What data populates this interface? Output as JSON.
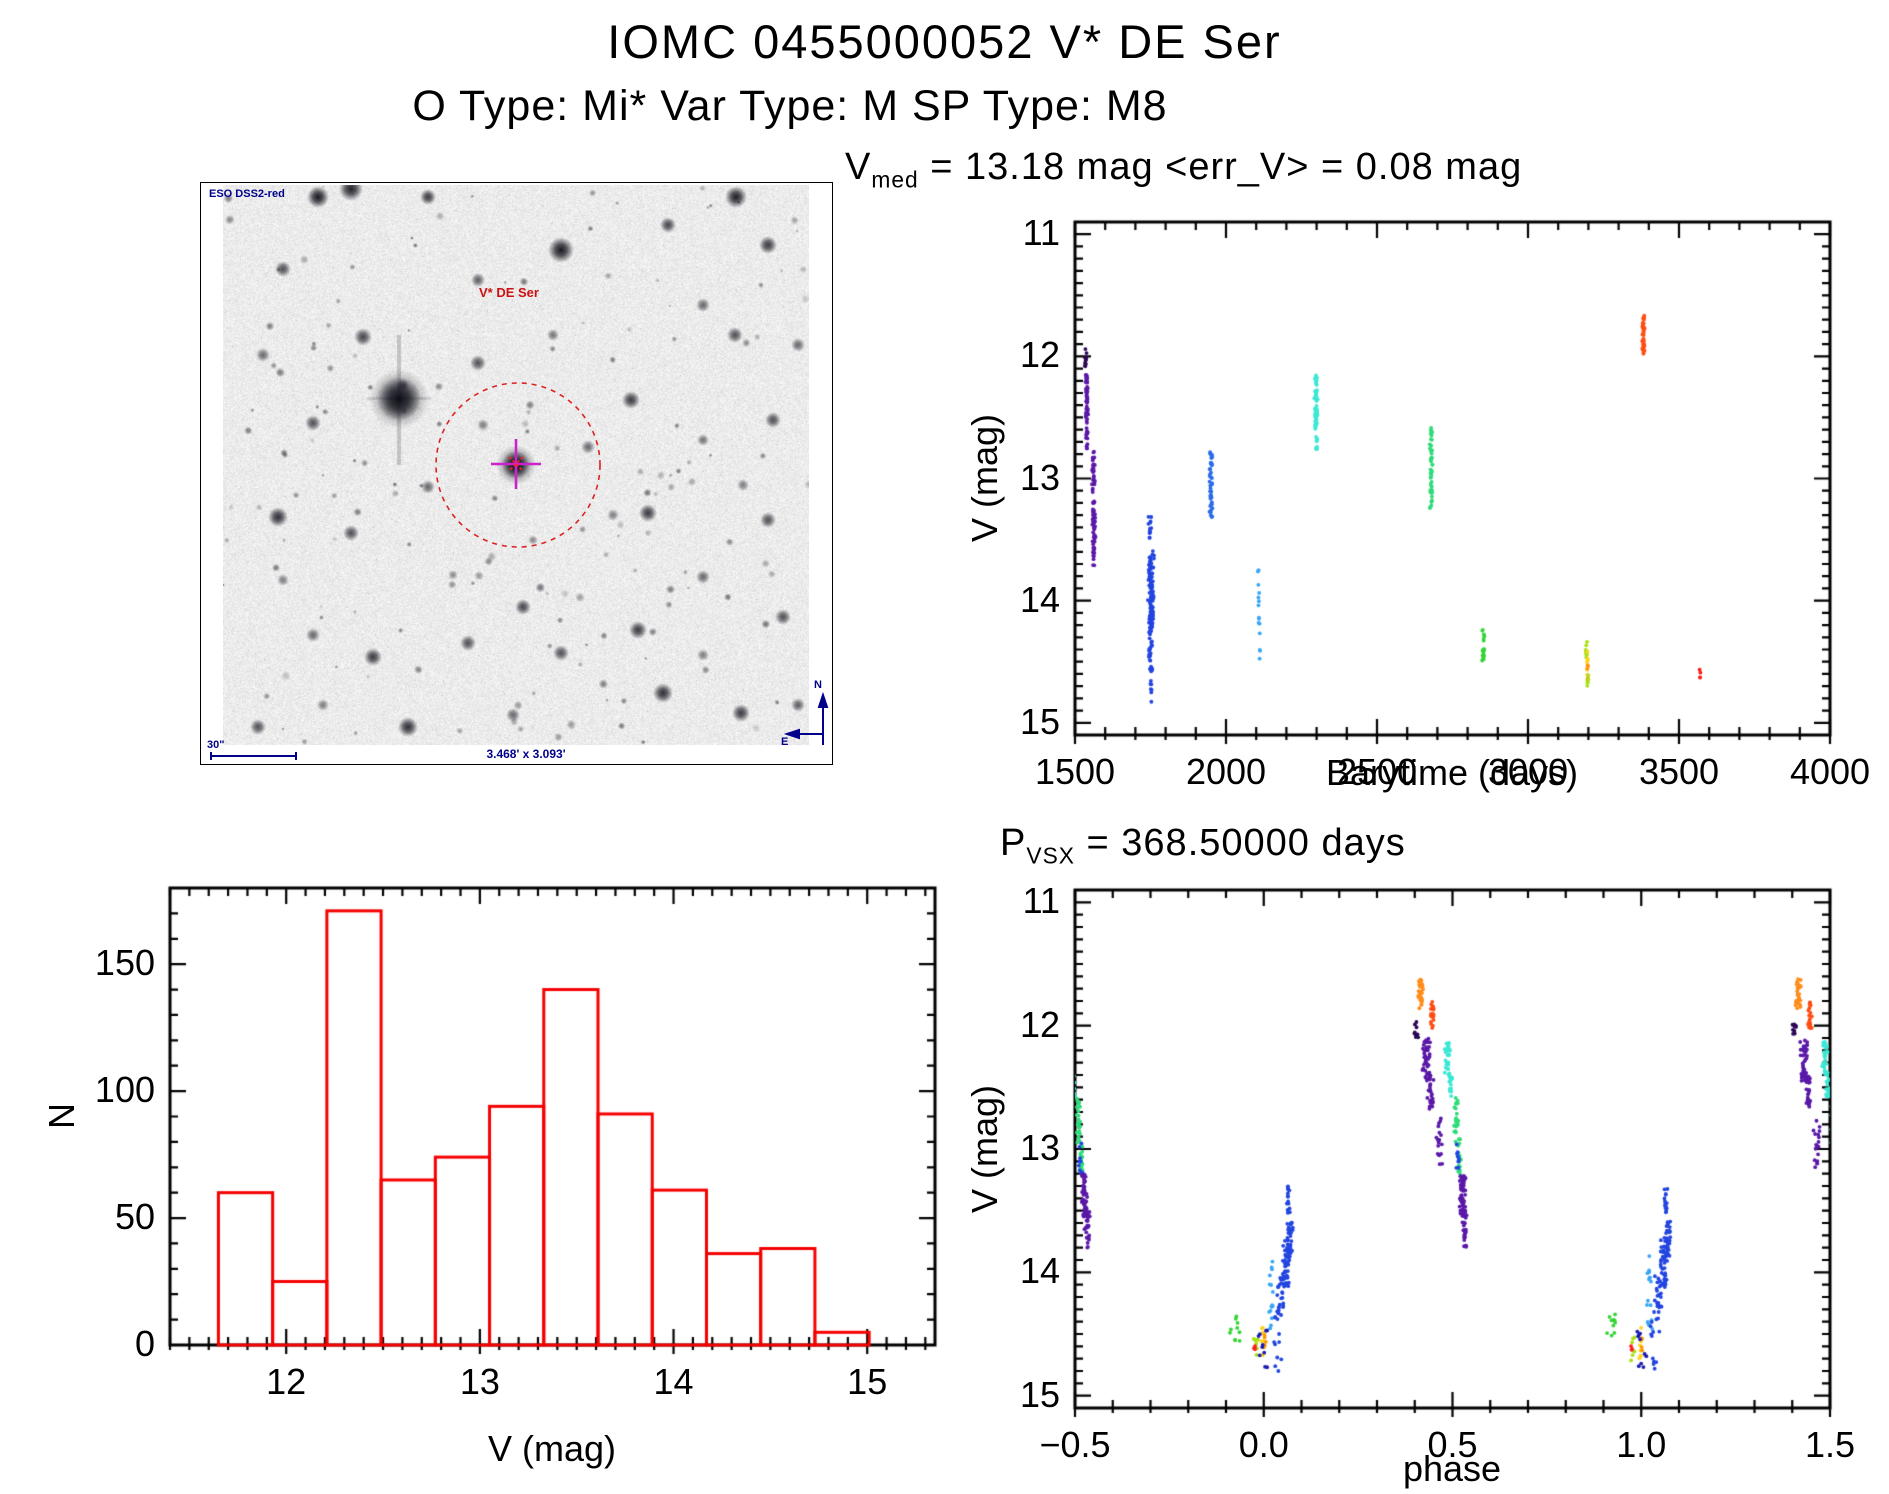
{
  "page": {
    "title": "IOMC 0455000052    V* DE Ser",
    "subtitle": "O Type: Mi*   Var Type: M   SP Type: M8"
  },
  "sky": {
    "survey_label": "ESO DSS2-red",
    "target_label": "V* DE Ser",
    "scale_bar_label": "30\"",
    "fov_label": "3.468' x 3.093'",
    "compass_north": "N",
    "compass_east": "E",
    "annotation_color": "#00008b",
    "target_label_color": "#cc1111",
    "circle_color": "#dd2222",
    "cross_color": "#cc22cc"
  },
  "palette": {
    "dkv": "#2b0656",
    "vio": "#5a18a8",
    "blu": "#2244e0",
    "bl2": "#2a6ce8",
    "lbl": "#38a6f5",
    "cyn": "#3ce8d5",
    "grn": "#2edc7a",
    "gr2": "#35d435",
    "ylg": "#a8e015",
    "yel": "#ffd21e",
    "or3": "#ff9500",
    "or1": "#ff8c1a",
    "or2": "#ff4d12",
    "red": "#ff1a1a",
    "nvy": "#1a1ab0"
  },
  "chart_data": [
    {
      "id": "barytime_lightcurve",
      "type": "scatter",
      "title": {
        "main": "V",
        "sub": "med",
        "rest": " = 13.18 mag <err_V> = 0.08 mag"
      },
      "xlabel": "Barytime (days)",
      "ylabel": "V (mag)",
      "xlim": [
        1500,
        4000
      ],
      "ylim_mag_top": 10.9,
      "ylim_mag_bottom": 15.1,
      "y_axis_inverted": true,
      "grid": false,
      "x_tick_values": [
        1500,
        2000,
        2500,
        3000,
        3500,
        4000
      ],
      "x_tick_labels": [
        "1500",
        "2000",
        "2500",
        "3000",
        "3500",
        "4000"
      ],
      "y_tick_values": [
        11,
        12,
        13,
        14,
        15
      ],
      "y_tick_labels": [
        "11",
        "12",
        "13",
        "14",
        "15"
      ],
      "x_minor_step": 100,
      "y_minor_step": 0.1,
      "clusters": [
        {
          "c": "dkv",
          "t": 1536,
          "dt": 4,
          "m0": 11.93,
          "m1": 12.12,
          "n": 10
        },
        {
          "c": "vio",
          "t": 1539,
          "dt": 5,
          "m0": 12.13,
          "m1": 12.68,
          "n": 60
        },
        {
          "c": "vio",
          "t": 1540,
          "dt": 3,
          "m0": 12.7,
          "m1": 12.8,
          "n": 4
        },
        {
          "c": "vio",
          "t": 1561,
          "dt": 6,
          "m0": 12.78,
          "m1": 13.12,
          "n": 30
        },
        {
          "c": "vio",
          "t": 1563,
          "dt": 6,
          "m0": 13.18,
          "m1": 13.72,
          "n": 55
        },
        {
          "c": "blu",
          "t": 1748,
          "dt": 7,
          "m0": 13.3,
          "m1": 13.52,
          "n": 12
        },
        {
          "c": "blu",
          "t": 1752,
          "dt": 11,
          "m0": 13.58,
          "m1": 14.28,
          "n": 105
        },
        {
          "c": "blu",
          "t": 1750,
          "dt": 8,
          "m0": 14.3,
          "m1": 14.62,
          "n": 22
        },
        {
          "c": "blu",
          "t": 1753,
          "dt": 5,
          "m0": 14.65,
          "m1": 14.85,
          "n": 7
        },
        {
          "c": "bl2",
          "t": 1950,
          "dt": 6,
          "m0": 12.78,
          "m1": 13.32,
          "n": 48
        },
        {
          "c": "lbl",
          "t": 2108,
          "dt": 4,
          "m0": 13.72,
          "m1": 14.06,
          "n": 8
        },
        {
          "c": "lbl",
          "t": 2110,
          "dt": 4,
          "m0": 14.1,
          "m1": 14.3,
          "n": 5
        },
        {
          "c": "lbl",
          "t": 2112,
          "dt": 3,
          "m0": 14.4,
          "m1": 14.52,
          "n": 3
        },
        {
          "c": "cyn",
          "t": 2298,
          "dt": 6,
          "m0": 12.15,
          "m1": 12.6,
          "n": 58
        },
        {
          "c": "cyn",
          "t": 2300,
          "dt": 4,
          "m0": 12.62,
          "m1": 12.82,
          "n": 9
        },
        {
          "c": "grn",
          "t": 2680,
          "dt": 6,
          "m0": 12.58,
          "m1": 13.26,
          "n": 52
        },
        {
          "c": "gr2",
          "t": 2852,
          "dt": 5,
          "m0": 14.18,
          "m1": 14.52,
          "n": 18
        },
        {
          "c": "ylg",
          "t": 3193,
          "dt": 3,
          "m0": 14.32,
          "m1": 14.52,
          "n": 8
        },
        {
          "c": "yel",
          "t": 3196,
          "dt": 3,
          "m0": 14.4,
          "m1": 14.62,
          "n": 7
        },
        {
          "c": "or3",
          "t": 3197,
          "dt": 3,
          "m0": 14.5,
          "m1": 14.7,
          "n": 6
        },
        {
          "c": "ylg",
          "t": 3198,
          "dt": 3,
          "m0": 14.6,
          "m1": 14.74,
          "n": 5
        },
        {
          "c": "or2",
          "t": 3382,
          "dt": 5,
          "m0": 11.66,
          "m1": 11.98,
          "n": 38
        },
        {
          "c": "red",
          "t": 3570,
          "dt": 3,
          "m0": 14.56,
          "m1": 14.64,
          "n": 4
        }
      ]
    },
    {
      "id": "magnitude_histogram",
      "type": "bar",
      "title": "",
      "xlabel": "V (mag)",
      "ylabel": "N",
      "xlim": [
        11.4,
        15.35
      ],
      "ylim": [
        0,
        180
      ],
      "grid": false,
      "x_tick_values": [
        12,
        13,
        14,
        15
      ],
      "x_tick_labels": [
        "12",
        "13",
        "14",
        "15"
      ],
      "y_tick_values": [
        0,
        50,
        100,
        150
      ],
      "y_tick_labels": [
        "0",
        "50",
        "100",
        "150"
      ],
      "x_minor_step": 0.1,
      "y_minor_step": 10,
      "bin_start": 11.65,
      "bin_width": 0.28,
      "counts": [
        60,
        25,
        171,
        65,
        74,
        94,
        140,
        91,
        61,
        36,
        38,
        5
      ],
      "bar_color": "#f50000"
    },
    {
      "id": "phase_folded_lightcurve",
      "type": "scatter",
      "title": {
        "main": "P",
        "sub": "VSX",
        "rest": " = 368.50000 days"
      },
      "xlabel": "phase",
      "ylabel": "V (mag)",
      "xlim": [
        -0.5,
        1.5
      ],
      "ylim_mag_top": 10.9,
      "ylim_mag_bottom": 15.1,
      "y_axis_inverted": true,
      "grid": false,
      "period_days": 368.5,
      "x_tick_values": [
        -0.5,
        0.0,
        0.5,
        1.0,
        1.5
      ],
      "x_tick_labels": [
        "−0.5",
        "0.0",
        "0.5",
        "1.0",
        "1.5"
      ],
      "y_tick_values": [
        11,
        12,
        13,
        14,
        15
      ],
      "y_tick_labels": [
        "11",
        "12",
        "13",
        "14",
        "15"
      ],
      "x_minor_step": 0.1,
      "y_minor_step": 0.1,
      "cluster_phase_copies": [
        -1,
        0,
        1
      ],
      "clusters": [
        {
          "c": "or1",
          "p": 0.415,
          "dp": 0.008,
          "m0": 11.62,
          "m1": 11.86,
          "n": 30
        },
        {
          "c": "or2",
          "p": 0.447,
          "dp": 0.006,
          "m0": 11.8,
          "m1": 12.02,
          "n": 20
        },
        {
          "c": "dkv",
          "p": 0.405,
          "dp": 0.007,
          "m0": 11.95,
          "m1": 12.1,
          "n": 10
        },
        {
          "c": "vio",
          "p": 0.432,
          "dp": 0.012,
          "m0": 12.1,
          "m1": 12.45,
          "n": 45
        },
        {
          "c": "vio",
          "p": 0.442,
          "dp": 0.01,
          "m0": 12.4,
          "m1": 12.68,
          "n": 30
        },
        {
          "c": "vio",
          "p": 0.465,
          "dp": 0.01,
          "m0": 12.75,
          "m1": 13.15,
          "n": 18
        },
        {
          "c": "cyn",
          "p": 0.487,
          "dp": 0.008,
          "m0": 12.13,
          "m1": 12.4,
          "n": 28
        },
        {
          "c": "cyn",
          "p": 0.495,
          "dp": 0.007,
          "m0": 12.38,
          "m1": 12.58,
          "n": 18
        },
        {
          "c": "grn",
          "p": 0.51,
          "dp": 0.008,
          "m0": 12.58,
          "m1": 12.95,
          "n": 26
        },
        {
          "c": "grn",
          "p": 0.518,
          "dp": 0.007,
          "m0": 12.92,
          "m1": 13.22,
          "n": 20
        },
        {
          "c": "blu",
          "p": 0.515,
          "dp": 0.008,
          "m0": 12.95,
          "m1": 13.25,
          "n": 10
        },
        {
          "c": "vio",
          "p": 0.525,
          "dp": 0.01,
          "m0": 13.2,
          "m1": 13.55,
          "n": 50
        },
        {
          "c": "vio",
          "p": 0.532,
          "dp": 0.008,
          "m0": 13.5,
          "m1": 13.72,
          "n": 25
        },
        {
          "c": "vio",
          "p": 0.535,
          "dp": 0.006,
          "m0": 13.72,
          "m1": 13.8,
          "n": 5
        },
        {
          "c": "gr2",
          "p": -0.075,
          "dp": 0.02,
          "m0": 14.33,
          "m1": 14.58,
          "n": 10
        },
        {
          "c": "ylg",
          "p": -0.02,
          "dp": 0.008,
          "m0": 14.52,
          "m1": 14.72,
          "n": 7
        },
        {
          "c": "yel",
          "p": -0.003,
          "dp": 0.006,
          "m0": 14.45,
          "m1": 14.7,
          "n": 8
        },
        {
          "c": "or3",
          "p": 0.002,
          "dp": 0.005,
          "m0": 14.5,
          "m1": 14.66,
          "n": 5
        },
        {
          "c": "red",
          "p": -0.024,
          "dp": 0.004,
          "m0": 14.55,
          "m1": 14.63,
          "n": 3
        },
        {
          "c": "nvy",
          "p": 0.0,
          "dp": 0.018,
          "m0": 14.45,
          "m1": 14.78,
          "n": 10
        },
        {
          "c": "lbl",
          "p": 0.022,
          "dp": 0.01,
          "m0": 13.78,
          "m1": 14.48,
          "n": 16
        },
        {
          "c": "blu",
          "p": 0.045,
          "dp": 0.012,
          "m0": 14.0,
          "m1": 14.32,
          "n": 22
        },
        {
          "c": "blu",
          "p": 0.06,
          "dp": 0.012,
          "m0": 13.72,
          "m1": 14.12,
          "n": 45
        },
        {
          "c": "blu",
          "p": 0.07,
          "dp": 0.009,
          "m0": 13.58,
          "m1": 13.88,
          "n": 30
        },
        {
          "c": "blu",
          "p": 0.035,
          "dp": 0.015,
          "m0": 14.3,
          "m1": 14.8,
          "n": 15
        },
        {
          "c": "blu",
          "p": 0.065,
          "dp": 0.005,
          "m0": 13.3,
          "m1": 13.52,
          "n": 16
        }
      ]
    }
  ]
}
